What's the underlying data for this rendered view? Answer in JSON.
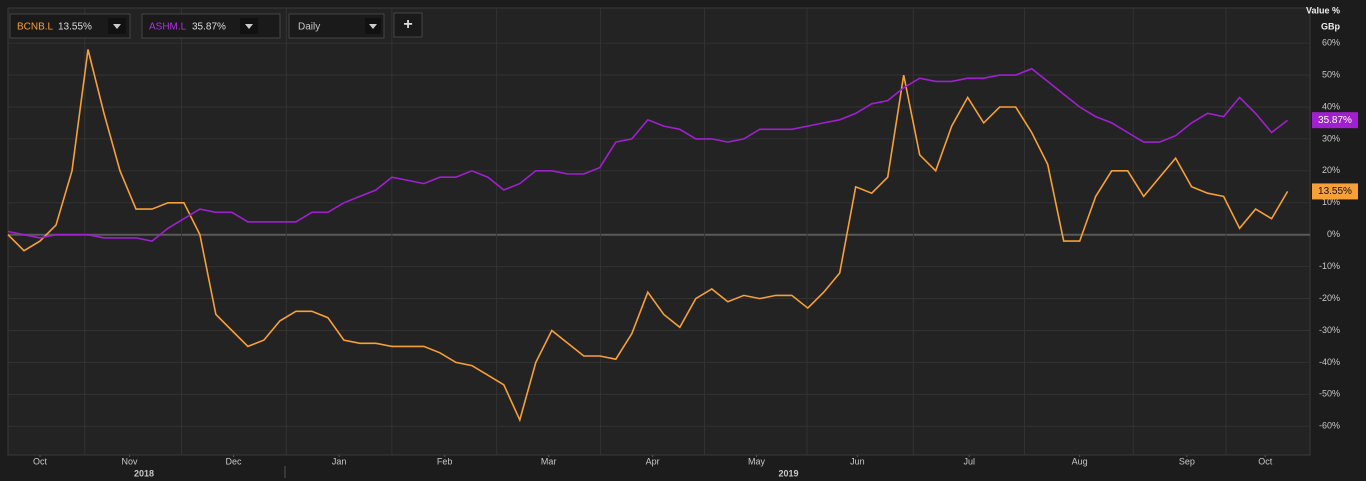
{
  "chart_data": {
    "type": "line",
    "y_axis_title": "Value %",
    "y_axis_unit": "GBp",
    "interval": "Daily",
    "add_button": "+",
    "xlim": [
      0,
      81.4
    ],
    "ylim": [
      -69,
      71
    ],
    "xticks": [
      {
        "value": 2,
        "label": "Oct"
      },
      {
        "value": 7.6,
        "label": "Nov"
      },
      {
        "value": 14.1,
        "label": "Dec"
      },
      {
        "value": 20.7,
        "label": "Jan"
      },
      {
        "value": 27.3,
        "label": "Feb"
      },
      {
        "value": 33.8,
        "label": "Mar"
      },
      {
        "value": 40.3,
        "label": "Apr"
      },
      {
        "value": 46.8,
        "label": "May"
      },
      {
        "value": 53.1,
        "label": "Jun"
      },
      {
        "value": 60.1,
        "label": "Jul"
      },
      {
        "value": 67,
        "label": "Aug"
      },
      {
        "value": 73.7,
        "label": "Sep"
      },
      {
        "value": 78.6,
        "label": "Oct"
      }
    ],
    "year_labels": [
      {
        "value": 8.5,
        "label": "2018"
      },
      {
        "value": 48.8,
        "label": "2019"
      }
    ],
    "yticks": [
      {
        "value": 60,
        "label": "60%"
      },
      {
        "value": 50,
        "label": "50%"
      },
      {
        "value": 40,
        "label": "40%"
      },
      {
        "value": 30,
        "label": "30%"
      },
      {
        "value": 20,
        "label": "20%"
      },
      {
        "value": 10,
        "label": "10%"
      },
      {
        "value": 0,
        "label": "0%"
      },
      {
        "value": -10,
        "label": "-10%"
      },
      {
        "value": -20,
        "label": "-20%"
      },
      {
        "value": -30,
        "label": "-30%"
      },
      {
        "value": -40,
        "label": "-40%"
      },
      {
        "value": -50,
        "label": "-50%"
      },
      {
        "value": -60,
        "label": "-60%"
      }
    ],
    "grid": true,
    "series": [
      {
        "name": "BCNB.L",
        "color": "#f7a035",
        "end_label": "13.55%",
        "values": [
          0,
          -5,
          -2,
          3,
          20,
          58,
          38,
          20,
          8,
          8,
          10,
          10,
          0,
          -25,
          -30,
          -35,
          -33,
          -27,
          -24,
          -24,
          -26,
          -33,
          -34,
          -34,
          -35,
          -35,
          -35,
          -37,
          -40,
          -41,
          -44,
          -47,
          -58,
          -40,
          -30,
          -34,
          -38,
          -38,
          -39,
          -31,
          -18,
          -25,
          -29,
          -20,
          -17,
          -21,
          -19,
          -20,
          -19,
          -19,
          -23,
          -18,
          -12,
          15,
          13,
          18,
          50,
          25,
          20,
          34,
          43,
          35,
          40,
          40,
          32,
          22,
          -2,
          -2,
          12,
          20,
          20,
          12,
          18,
          24,
          15,
          13,
          12,
          2,
          8,
          5,
          13.55
        ]
      },
      {
        "name": "ASHM.L",
        "color": "#a020d0",
        "end_label": "35.87%",
        "values": [
          1,
          0,
          -1,
          0,
          0,
          0,
          -1,
          -1,
          -1,
          -2,
          2,
          5,
          8,
          7,
          7,
          4,
          4,
          4,
          4,
          7,
          7,
          10,
          12,
          14,
          18,
          17,
          16,
          18,
          18,
          20,
          18,
          14,
          16,
          20,
          20,
          19,
          19,
          21,
          29,
          30,
          36,
          34,
          33,
          30,
          30,
          29,
          30,
          33,
          33,
          33,
          34,
          35,
          36,
          38,
          41,
          42,
          46,
          49,
          48,
          48,
          49,
          49,
          50,
          50,
          52,
          48,
          44,
          40,
          37,
          35,
          32,
          29,
          29,
          31,
          35,
          38,
          37,
          43,
          38,
          32,
          35.87
        ]
      }
    ]
  }
}
